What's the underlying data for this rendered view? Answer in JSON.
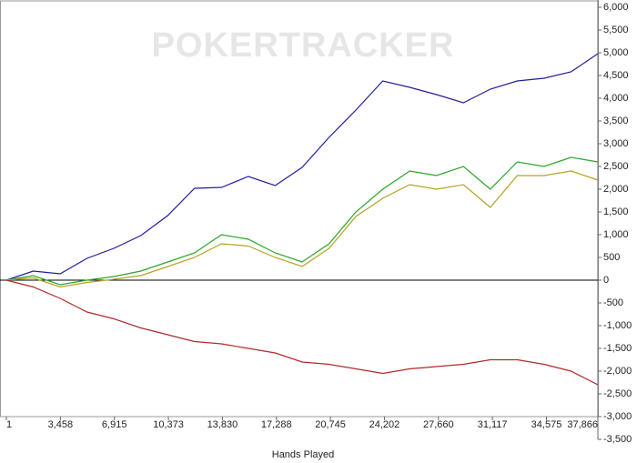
{
  "chart_data": {
    "type": "line",
    "watermark": "POKERTRACKER",
    "x_label": "Hands Played",
    "x": [
      1,
      1722,
      3443,
      5164,
      6885,
      8607,
      10328,
      12049,
      13770,
      15491,
      17212,
      18933,
      20655,
      22376,
      24097,
      25818,
      27539,
      29260,
      30981,
      32703,
      34424,
      36145,
      37866
    ],
    "series": [
      {
        "name": "blue",
        "color": "#1f1f9a",
        "values": [
          0,
          200,
          140,
          480,
          700,
          980,
          1420,
          2020,
          2040,
          2280,
          2080,
          2480,
          3140,
          3740,
          4380,
          4240,
          4080,
          3900,
          4200,
          4380,
          4440,
          4580,
          4980
        ]
      },
      {
        "name": "green",
        "color": "#2aa52a",
        "values": [
          0,
          100,
          -100,
          0,
          80,
          200,
          400,
          600,
          1000,
          900,
          600,
          400,
          800,
          1500,
          2000,
          2400,
          2300,
          2500,
          2000,
          2600,
          2500,
          2700,
          2600
        ]
      },
      {
        "name": "olive",
        "color": "#b3a323",
        "values": [
          0,
          50,
          -150,
          -50,
          20,
          100,
          300,
          500,
          800,
          750,
          500,
          300,
          700,
          1400,
          1800,
          2100,
          2000,
          2100,
          1600,
          2300,
          2300,
          2400,
          2200
        ]
      },
      {
        "name": "red",
        "color": "#b22a2a",
        "values": [
          0,
          -150,
          -400,
          -700,
          -850,
          -1050,
          -1200,
          -1350,
          -1400,
          -1500,
          -1600,
          -1800,
          -1850,
          -1950,
          -2050,
          -1950,
          -1900,
          -1850,
          -1750,
          -1750,
          -1850,
          -2000,
          -2300
        ]
      }
    ],
    "xlim": [
      1,
      37866
    ],
    "xticks": [
      1,
      {
        "value": 3458,
        "label": "3,458"
      },
      {
        "value": 6915,
        "label": "6,915"
      },
      {
        "value": 10373,
        "label": "10,373"
      },
      {
        "value": 13830,
        "label": "13,830"
      },
      {
        "value": 17288,
        "label": "17,288"
      },
      {
        "value": 20745,
        "label": "20,745"
      },
      {
        "value": 24202,
        "label": "24,202"
      },
      {
        "value": 27660,
        "label": "27,660"
      },
      {
        "value": 31117,
        "label": "31,117"
      },
      {
        "value": 34575,
        "label": "34,575"
      },
      {
        "value": 37866,
        "label": "37,866"
      }
    ],
    "ylim": [
      -3500,
      6000
    ],
    "yticks": [
      {
        "value": 6000,
        "label": "6,000"
      },
      {
        "value": 5500,
        "label": "5,500"
      },
      {
        "value": 5000,
        "label": "5,000"
      },
      {
        "value": 4500,
        "label": "4,500"
      },
      {
        "value": 4000,
        "label": "4,000"
      },
      {
        "value": 3500,
        "label": "3,500"
      },
      {
        "value": 3000,
        "label": "3,000"
      },
      {
        "value": 2500,
        "label": "2,500"
      },
      {
        "value": 2000,
        "label": "2,000"
      },
      {
        "value": 1500,
        "label": "1,500"
      },
      {
        "value": 1000,
        "label": "1,000"
      },
      500,
      0,
      -500,
      {
        "value": -1000,
        "label": "-1,000"
      },
      {
        "value": -1500,
        "label": "-1,500"
      },
      {
        "value": -2000,
        "label": "-2,000"
      },
      {
        "value": -2500,
        "label": "-2,500"
      },
      {
        "value": -3000,
        "label": "-3,000"
      },
      {
        "value": -3500,
        "label": "-3,500"
      }
    ]
  }
}
